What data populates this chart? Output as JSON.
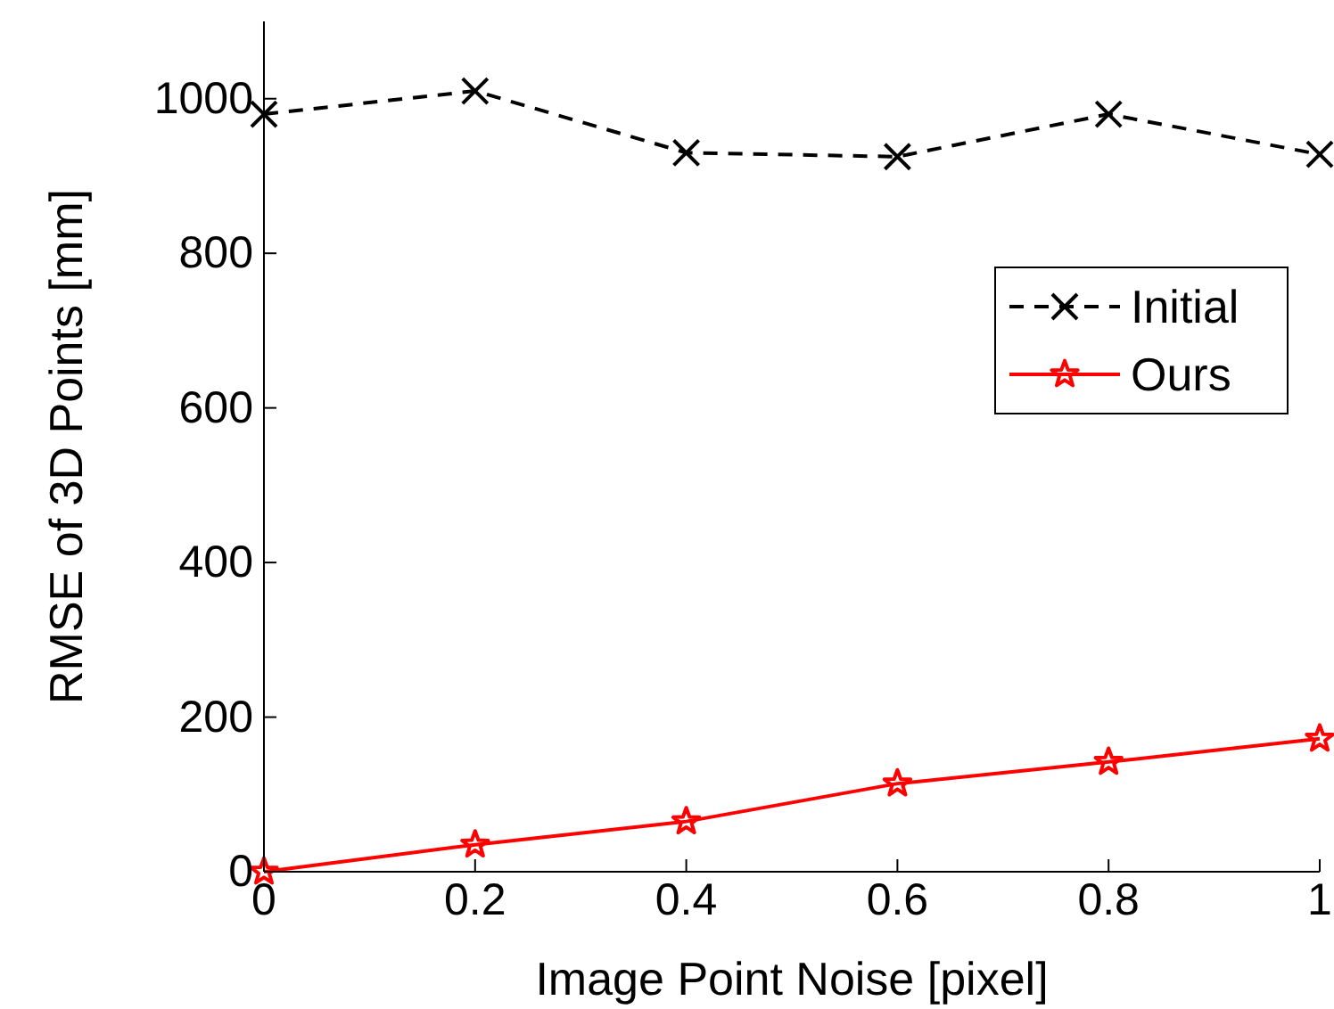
{
  "chart_data": {
    "type": "line",
    "xlabel": "Image Point Noise [pixel]",
    "ylabel": "RMSE of 3D Points [mm]",
    "x": [
      0,
      0.2,
      0.4,
      0.6,
      0.8,
      1
    ],
    "xlim": [
      0,
      1
    ],
    "xticks": [
      0,
      0.2,
      0.4,
      0.6,
      0.8,
      1
    ],
    "ylim": [
      0,
      1100
    ],
    "yticks": [
      0,
      200,
      400,
      600,
      800,
      1000
    ],
    "grid": false,
    "legend": "right",
    "series": [
      {
        "name": "Initial",
        "color": "#000000",
        "marker": "cross",
        "line_style": "dashed",
        "values": [
          980,
          1010,
          930,
          925,
          980,
          928
        ]
      },
      {
        "name": "Ours",
        "color": "#ff0000",
        "marker": "star",
        "line_style": "solid",
        "values": [
          0,
          35,
          65,
          114,
          142,
          172
        ]
      }
    ]
  }
}
